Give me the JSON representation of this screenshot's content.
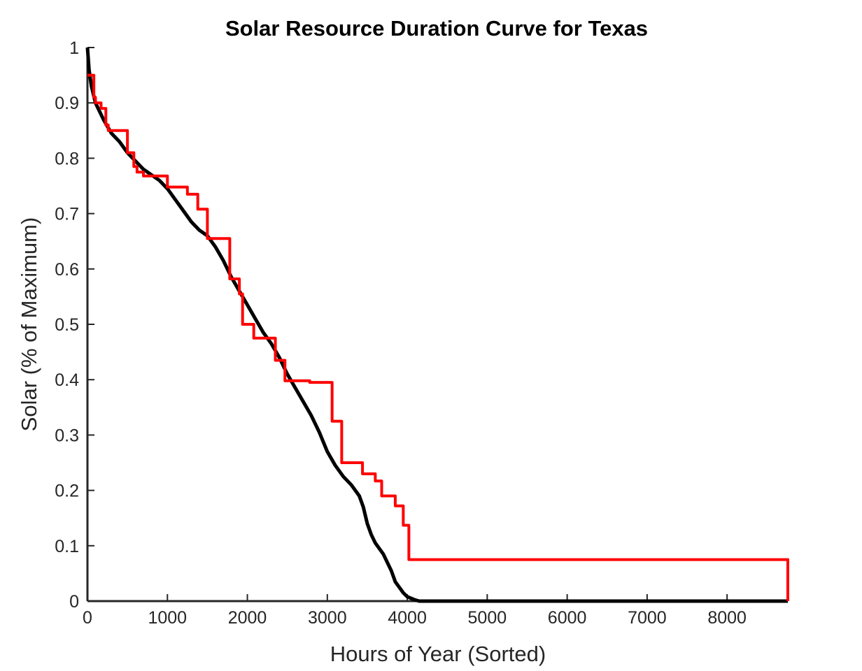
{
  "chart_data": {
    "type": "line",
    "title": "Solar Resource Duration Curve for Texas",
    "xlabel": "Hours of Year (Sorted)",
    "ylabel": "Solar (% of Maximum)",
    "xlim": [
      0,
      8760
    ],
    "ylim": [
      0,
      1
    ],
    "xticks": [
      0,
      1000,
      2000,
      3000,
      4000,
      5000,
      6000,
      7000,
      8000
    ],
    "yticks": [
      0,
      0.1,
      0.2,
      0.3,
      0.4,
      0.5,
      0.6,
      0.7,
      0.8,
      0.9,
      1
    ],
    "xtick_labels": [
      "0",
      "1000",
      "2000",
      "3000",
      "4000",
      "5000",
      "6000",
      "7000",
      "8000"
    ],
    "ytick_labels": [
      "0",
      "0.1",
      "0.2",
      "0.3",
      "0.4",
      "0.5",
      "0.6",
      "0.7",
      "0.8",
      "0.9",
      "1"
    ],
    "grid": false,
    "series": [
      {
        "color": "#000000",
        "style": "smooth",
        "x": [
          0,
          20,
          50,
          100,
          200,
          300,
          400,
          500,
          600,
          700,
          800,
          900,
          1000,
          1100,
          1200,
          1300,
          1400,
          1500,
          1600,
          1700,
          1800,
          1900,
          2000,
          2100,
          2200,
          2300,
          2400,
          2500,
          2600,
          2700,
          2800,
          2900,
          3000,
          3100,
          3200,
          3300,
          3400,
          3450,
          3500,
          3550,
          3600,
          3700,
          3800,
          3850,
          3900,
          3950,
          4000,
          4050,
          4100,
          4150,
          4200,
          4300,
          8760
        ],
        "y": [
          1.0,
          0.96,
          0.93,
          0.9,
          0.87,
          0.845,
          0.83,
          0.81,
          0.795,
          0.78,
          0.77,
          0.76,
          0.745,
          0.725,
          0.705,
          0.685,
          0.67,
          0.66,
          0.64,
          0.615,
          0.585,
          0.56,
          0.535,
          0.51,
          0.485,
          0.465,
          0.44,
          0.41,
          0.385,
          0.36,
          0.335,
          0.305,
          0.27,
          0.245,
          0.225,
          0.21,
          0.19,
          0.17,
          0.14,
          0.12,
          0.105,
          0.085,
          0.055,
          0.035,
          0.025,
          0.015,
          0.008,
          0.005,
          0.002,
          0.0,
          0.0,
          0.0,
          0.0
        ]
      },
      {
        "color": "#ff0000",
        "style": "stairs",
        "x": [
          0,
          80,
          100,
          170,
          230,
          260,
          480,
          500,
          580,
          620,
          700,
          1000,
          1250,
          1380,
          1500,
          1780,
          1900,
          1940,
          2080,
          2350,
          2470,
          2780,
          3060,
          3180,
          3440,
          3600,
          3680,
          3850,
          3950,
          4020,
          8760
        ],
        "y": [
          0.95,
          0.91,
          0.9,
          0.89,
          0.86,
          0.85,
          0.85,
          0.81,
          0.785,
          0.775,
          0.768,
          0.748,
          0.735,
          0.708,
          0.655,
          0.582,
          0.555,
          0.5,
          0.475,
          0.435,
          0.398,
          0.395,
          0.325,
          0.25,
          0.23,
          0.217,
          0.19,
          0.172,
          0.137,
          0.075,
          0.0
        ]
      }
    ]
  }
}
